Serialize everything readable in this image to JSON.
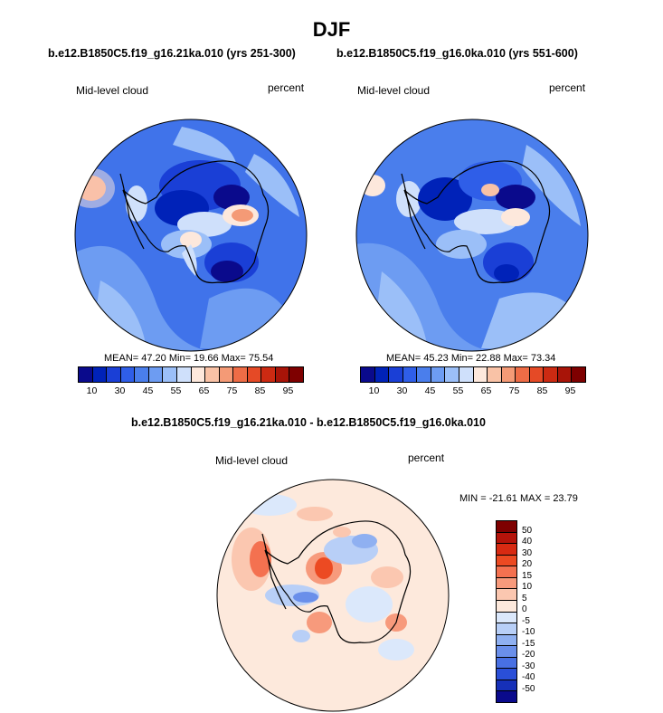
{
  "title": "DJF",
  "left_panel": {
    "case": "b.e12.B1850C5.f19_g16.21ka.010 (yrs 251-300)",
    "variable": "Mid-level cloud",
    "units": "percent",
    "stats": "MEAN= 47.20  Min= 19.66  Max= 75.54"
  },
  "right_panel": {
    "case": "b.e12.B1850C5.f19_g16.0ka.010 (yrs 551-600)",
    "variable": "Mid-level cloud",
    "units": "percent",
    "stats": "MEAN= 45.23  Min= 22.88  Max= 73.34"
  },
  "diff_panel": {
    "case": "b.e12.B1850C5.f19_g16.21ka.010 - b.e12.B1850C5.f19_g16.0ka.010",
    "variable": "Mid-level cloud",
    "units": "percent",
    "stats": "MIN = -21.61 MAX =  23.79"
  },
  "abs_colorbar": {
    "colors": [
      "#0a0a8c",
      "#0022b8",
      "#1a3fd6",
      "#2f5ee8",
      "#4a7eec",
      "#6d9cf2",
      "#9bbff8",
      "#cfe0fb",
      "#fde8dc",
      "#f9c2a6",
      "#f49a76",
      "#ee6c46",
      "#e54a26",
      "#cc2a12",
      "#a81408",
      "#7e0000"
    ],
    "labels": [
      "10",
      "30",
      "45",
      "55",
      "65",
      "75",
      "85",
      "95"
    ]
  },
  "diff_colorbar": {
    "colors": [
      "#7e0000",
      "#b5130a",
      "#d82a12",
      "#ec4a22",
      "#f47150",
      "#f79a7c",
      "#fbc7b0",
      "#fde9dc",
      "#dbe8fb",
      "#b8cff7",
      "#8fb0f1",
      "#6a8fea",
      "#4870e3",
      "#2a4fd8",
      "#1630b8",
      "#0a0a8c"
    ],
    "labels": [
      "50",
      "40",
      "30",
      "20",
      "15",
      "10",
      "5",
      "0",
      "-5",
      "-10",
      "-15",
      "-20",
      "-30",
      "-40",
      "-50"
    ]
  }
}
